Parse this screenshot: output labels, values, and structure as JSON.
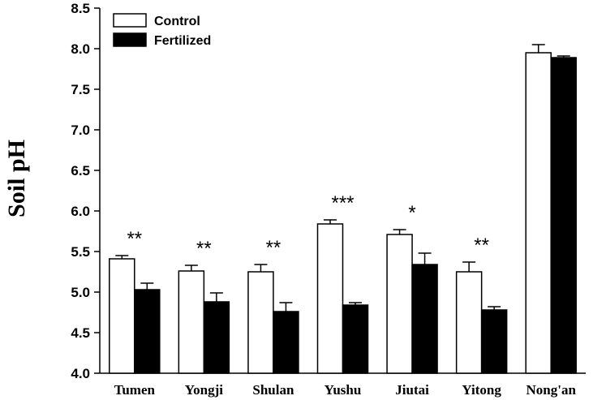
{
  "chart_data": {
    "type": "bar",
    "title": "",
    "xlabel": "",
    "ylabel": "Soil pH",
    "ylim": [
      4.0,
      8.5
    ],
    "yticks": [
      "4.0",
      "4.5",
      "5.0",
      "5.5",
      "6.0",
      "6.5",
      "7.0",
      "7.5",
      "8.0",
      "8.5"
    ],
    "categories": [
      "Tumen",
      "Yongji",
      "Shulan",
      "Yushu",
      "Jiutai",
      "Yitong",
      "Nong'an"
    ],
    "series": [
      {
        "name": "Control",
        "color": "#ffffff",
        "values": [
          5.41,
          5.26,
          5.25,
          5.84,
          5.71,
          5.25,
          7.95
        ],
        "errors": [
          0.04,
          0.07,
          0.09,
          0.05,
          0.06,
          0.12,
          0.1
        ]
      },
      {
        "name": "Fertilized",
        "color": "#000000",
        "values": [
          5.03,
          4.88,
          4.76,
          4.84,
          5.34,
          4.78,
          7.89
        ],
        "errors": [
          0.08,
          0.11,
          0.11,
          0.03,
          0.14,
          0.04,
          0.02
        ]
      }
    ],
    "significance": [
      "**",
      "**",
      "**",
      "***",
      "*",
      "**",
      ""
    ],
    "legend": {
      "position": "top-left",
      "labels": [
        "Control",
        "Fertilized"
      ]
    }
  }
}
